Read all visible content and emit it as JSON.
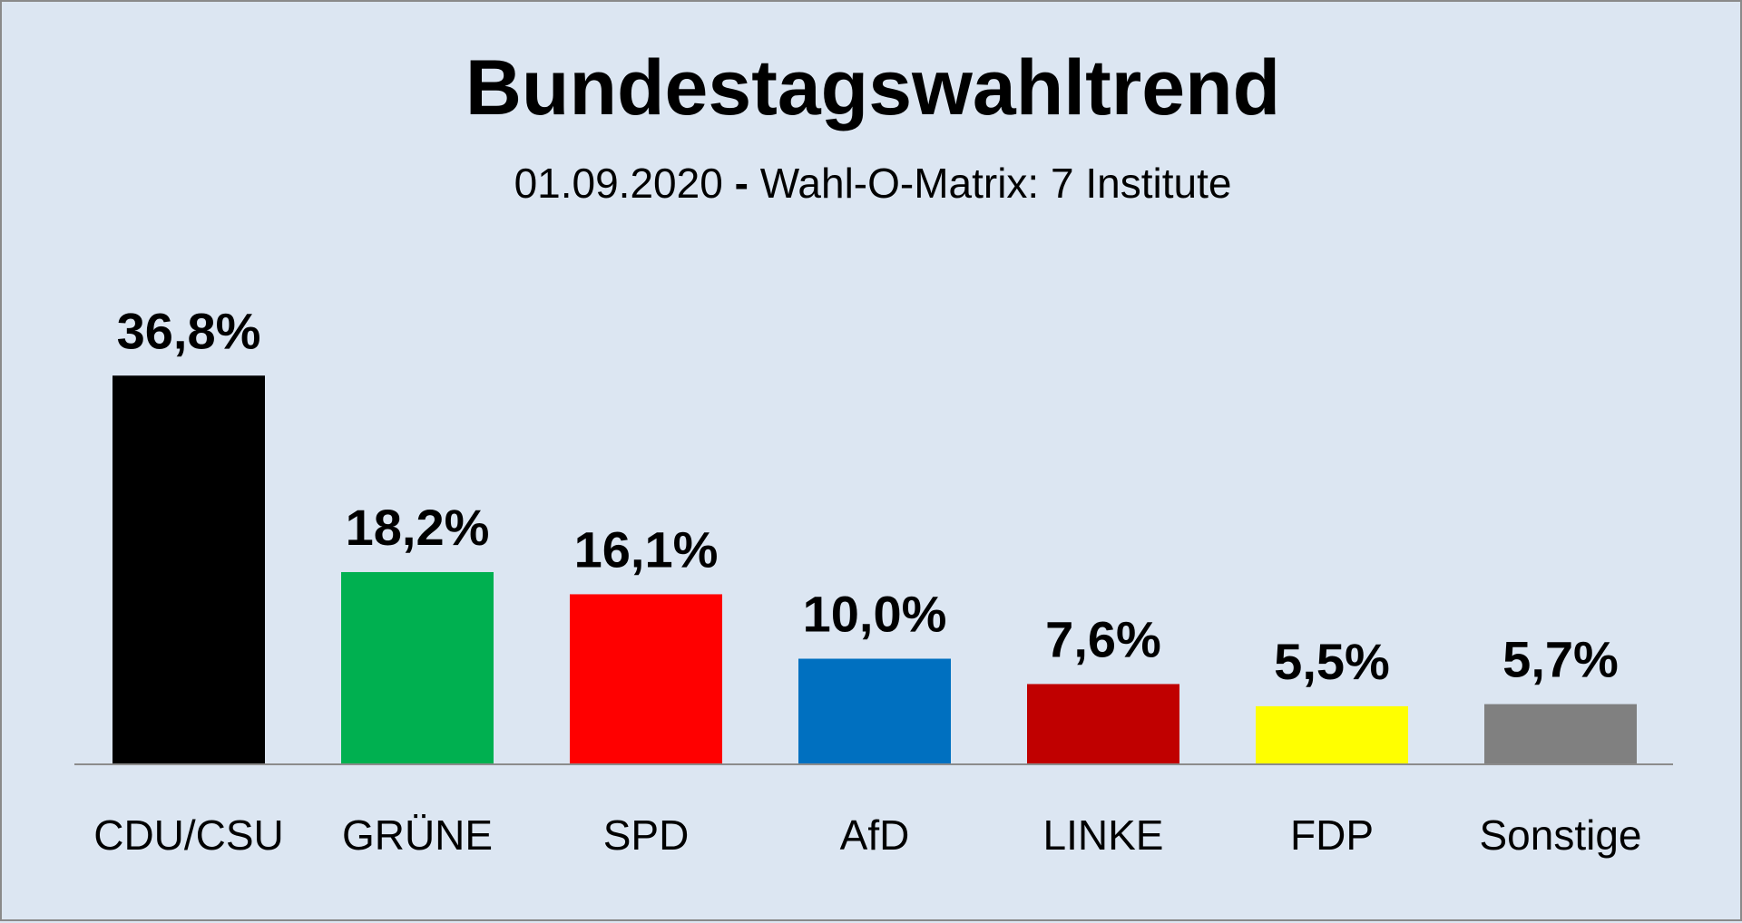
{
  "header": {
    "title": "Bundestagswahltrend",
    "subtitle_date": "01.09.2020",
    "subtitle_sep": "-",
    "subtitle_source": "Wahl-O-Matrix: 7 Institute"
  },
  "chart_data": {
    "type": "bar",
    "title": "Bundestagswahltrend",
    "subtitle": "01.09.2020 - Wahl-O-Matrix: 7 Institute",
    "categories": [
      "CDU/CSU",
      "GRÜNE",
      "SPD",
      "AfD",
      "LINKE",
      "FDP",
      "Sonstige"
    ],
    "values": [
      36.8,
      18.2,
      16.1,
      10.0,
      7.6,
      5.5,
      5.7
    ],
    "value_labels": [
      "36,8%",
      "18,2%",
      "16,1%",
      "10,0%",
      "7,6%",
      "5,5%",
      "5,7%"
    ],
    "colors": [
      "#000000",
      "#00b050",
      "#ff0000",
      "#0070c0",
      "#c00000",
      "#ffff00",
      "#808080"
    ],
    "xlabel": "",
    "ylabel": "",
    "ylim": [
      0,
      40
    ],
    "grid": false,
    "legend": "none"
  }
}
